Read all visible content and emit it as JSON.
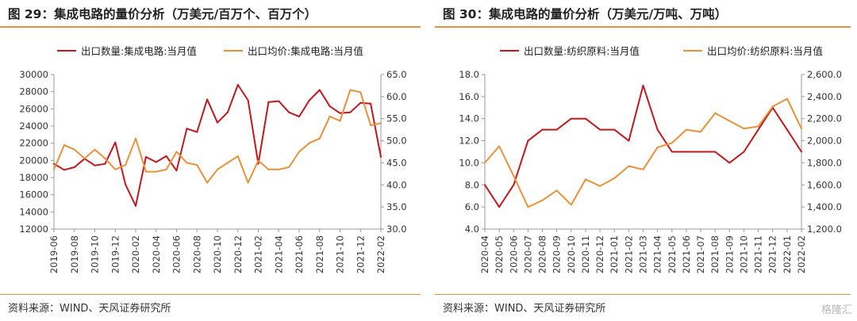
{
  "panels": [
    {
      "title": "图 29：集成电路的量价分析（万美元/百万个、百万个）",
      "source": "资料来源：WIND、天风证券研究所"
    },
    {
      "title": "图 30：集成电路的量价分析（万美元/万吨、万吨）",
      "source": "资料来源：WIND、天风证券研究所"
    }
  ],
  "watermark": "格隆汇",
  "colors": {
    "volume": "#c0181e",
    "price": "#e8913a",
    "rule": "#e8913a"
  },
  "chart_data": [
    {
      "type": "line",
      "legend_position": "top",
      "grid": false,
      "categories": [
        "2019-06",
        "2019-07",
        "2019-08",
        "2019-09",
        "2019-10",
        "2019-11",
        "2019-12",
        "2020-01",
        "2020-02",
        "2020-03",
        "2020-04",
        "2020-05",
        "2020-06",
        "2020-07",
        "2020-08",
        "2020-09",
        "2020-10",
        "2020-11",
        "2020-12",
        "2021-01",
        "2021-02",
        "2021-03",
        "2021-04",
        "2021-05",
        "2021-06",
        "2021-07",
        "2021-08",
        "2021-09",
        "2021-10",
        "2021-11",
        "2021-12",
        "2022-01",
        "2022-02"
      ],
      "x_tick_labels": [
        "2019-06",
        "2019-08",
        "2019-10",
        "2019-12",
        "2020-02",
        "2020-04",
        "2020-06",
        "2020-08",
        "2020-10",
        "2020-12",
        "2021-02",
        "2021-04",
        "2021-06",
        "2021-08",
        "2021-10",
        "2021-12",
        "2022-02"
      ],
      "y_left": {
        "ylim": [
          12000,
          30000
        ],
        "ticks": [
          "12000",
          "14000",
          "16000",
          "18000",
          "20000",
          "22000",
          "24000",
          "26000",
          "28000",
          "30000"
        ]
      },
      "y_right": {
        "ylim": [
          30,
          65
        ],
        "ticks": [
          "30.0",
          "35.0",
          "40.0",
          "45.0",
          "50.0",
          "55.0",
          "60.0",
          "65.0"
        ]
      },
      "series": [
        {
          "name": "出口数量:集成电路:当月值",
          "axis": "left",
          "color": "#c0181e",
          "values": [
            19600,
            18900,
            19200,
            20200,
            19400,
            19600,
            22100,
            17200,
            14700,
            20400,
            19800,
            20500,
            18800,
            23700,
            23300,
            27100,
            24400,
            25600,
            28800,
            27000,
            19600,
            26800,
            26900,
            25600,
            25100,
            27000,
            28200,
            26300,
            25500,
            25600,
            26700,
            26600,
            20400
          ]
        },
        {
          "name": "出口均价:集成电路:当月值",
          "axis": "right",
          "color": "#e8913a",
          "values": [
            43.5,
            49.0,
            48.0,
            46.0,
            48.0,
            46.0,
            43.5,
            44.5,
            50.5,
            43.0,
            43.0,
            43.5,
            47.5,
            45.0,
            44.5,
            40.5,
            43.5,
            45.0,
            46.5,
            40.5,
            45.5,
            43.5,
            43.5,
            44.0,
            47.5,
            49.5,
            50.5,
            55.5,
            54.5,
            61.5,
            61.0,
            53.5,
            54.0
          ]
        }
      ]
    },
    {
      "type": "line",
      "legend_position": "top",
      "grid": false,
      "categories": [
        "2020-04",
        "2020-05",
        "2020-06",
        "2020-07",
        "2020-08",
        "2020-09",
        "2020-10",
        "2020-11",
        "2020-12",
        "2021-01",
        "2021-02",
        "2021-03",
        "2021-04",
        "2021-05",
        "2021-06",
        "2021-07",
        "2021-08",
        "2021-09",
        "2021-10",
        "2021-11",
        "2021-12",
        "2022-01",
        "2022-02"
      ],
      "x_tick_labels": [
        "2020-04",
        "2020-05",
        "2020-06",
        "2020-07",
        "2020-08",
        "2020-09",
        "2020-10",
        "2020-11",
        "2020-12",
        "2021-01",
        "2021-02",
        "2021-03",
        "2021-04",
        "2021-05",
        "2021-06",
        "2021-07",
        "2021-08",
        "2021-09",
        "2021-10",
        "2021-11",
        "2021-12",
        "2022-01",
        "2022-02"
      ],
      "y_left": {
        "ylim": [
          4,
          18
        ],
        "ticks": [
          "4.0",
          "6.0",
          "8.0",
          "10.0",
          "12.0",
          "14.0",
          "16.0",
          "18.0"
        ]
      },
      "y_right": {
        "ylim": [
          1200,
          2600
        ],
        "ticks": [
          "1,200.0",
          "1,400.0",
          "1,600.0",
          "1,800.0",
          "2,000.0",
          "2,200.0",
          "2,400.0",
          "2,600.0"
        ]
      },
      "series": [
        {
          "name": "出口数量:纺织原料:当月值",
          "axis": "left",
          "color": "#c0181e",
          "values": [
            8,
            6,
            8,
            12,
            13,
            13,
            14,
            14,
            13,
            13,
            12,
            17,
            13,
            11,
            11,
            11,
            11,
            10,
            11,
            13,
            15,
            13,
            11
          ]
        },
        {
          "name": "出口均价:纺织原料:当月值",
          "axis": "right",
          "color": "#e8913a",
          "values": [
            1800,
            1950,
            1680,
            1400,
            1460,
            1550,
            1420,
            1650,
            1590,
            1660,
            1770,
            1740,
            1940,
            1980,
            2100,
            2080,
            2250,
            2180,
            2110,
            2130,
            2310,
            2380,
            2110
          ]
        }
      ]
    }
  ]
}
